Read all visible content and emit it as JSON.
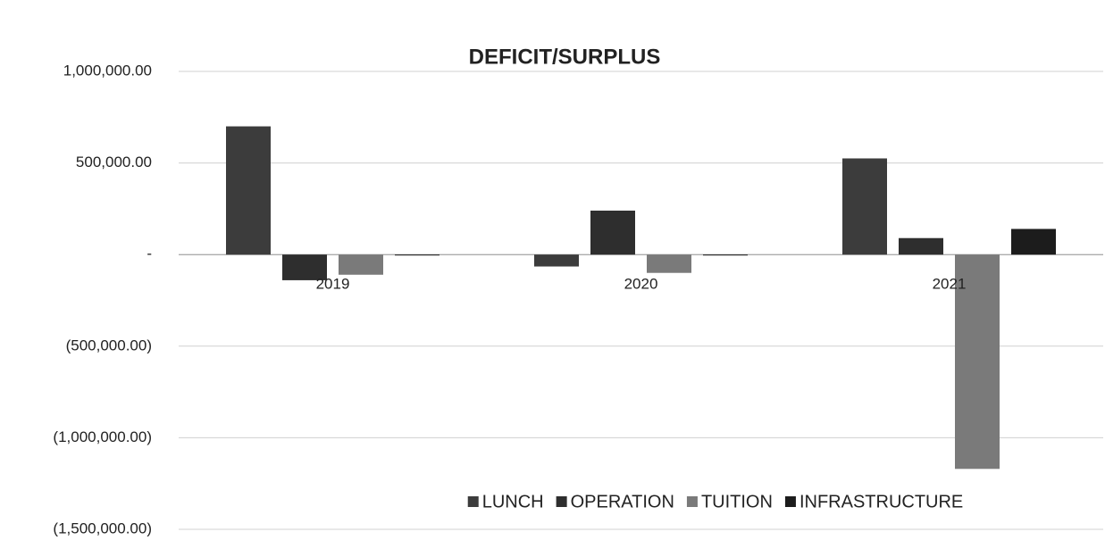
{
  "chart_data": {
    "type": "bar",
    "title": "DEFICIT/SURPLUS",
    "categories": [
      "2019",
      "2020",
      "2021"
    ],
    "series": [
      {
        "name": "LUNCH",
        "color": "#3c3c3c",
        "values": [
          700000,
          -65000,
          525000
        ]
      },
      {
        "name": "OPERATION",
        "color": "#2e2e2e",
        "values": [
          -140000,
          240000,
          90000
        ]
      },
      {
        "name": "TUITION",
        "color": "#7a7a7a",
        "values": [
          -110000,
          -100000,
          -1170000
        ]
      },
      {
        "name": "INFRASTRUCTURE",
        "color": "#1c1c1c",
        "values": [
          -5000,
          -5000,
          140000
        ]
      }
    ],
    "ylim": [
      -1500000,
      1000000
    ],
    "yticks": [
      {
        "value": 1000000,
        "label": "1,000,000.00"
      },
      {
        "value": 500000,
        "label": "500,000.00"
      },
      {
        "value": 0,
        "label": "-"
      },
      {
        "value": -500000,
        "label": "(500,000.00)"
      },
      {
        "value": -1000000,
        "label": "(1,000,000.00)"
      },
      {
        "value": -1500000,
        "label": "(1,500,000.00)"
      }
    ],
    "grid": true,
    "legend": "bottom"
  }
}
